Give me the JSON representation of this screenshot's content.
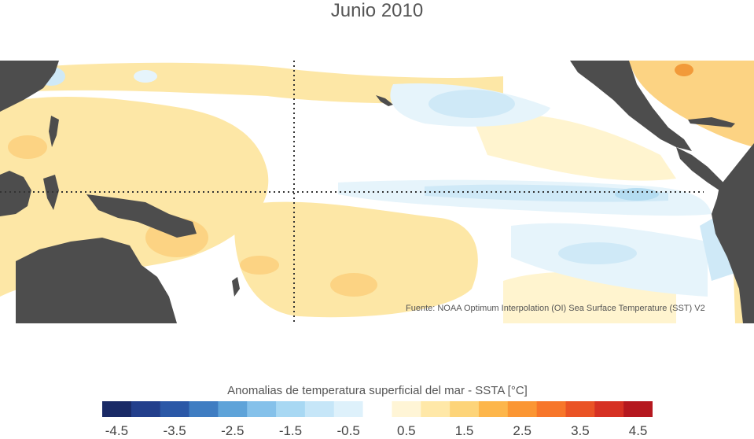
{
  "title": "Junio 2010",
  "source": "Fuente: NOAA Optimum Interpolation (OI) Sea Surface Temperature (SST) V2",
  "colorbar": {
    "label": "Anomalias de temperatura superficial del mar - SSTA  [°C]",
    "colors": [
      "#1a2a66",
      "#233f8c",
      "#2b58a7",
      "#3f7dc2",
      "#5ea3d9",
      "#85c1ea",
      "#a8d8f3",
      "#c6e6f8",
      "#def1fb",
      "#ffffff",
      "#fff5d6",
      "#ffe8a8",
      "#fdd479",
      "#fdb64b",
      "#fb9633",
      "#f7762a",
      "#ea5325",
      "#d63123",
      "#b5181f"
    ],
    "ticks": [
      "-4.5",
      "-3.5",
      "-2.5",
      "-1.5",
      "-0.5",
      "0.5",
      "1.5",
      "2.5",
      "3.5",
      "4.5"
    ]
  },
  "colors": {
    "land": "#4d4d4d",
    "warm_light": "#fff4cf",
    "warm": "#fde7a6",
    "warm_med": "#fcd383",
    "warm_strong": "#f9b64e",
    "warm_hot": "#f29a3a",
    "cool_light": "#e6f4fb",
    "cool": "#cfe9f7",
    "cool_med": "#b4dcf1"
  }
}
